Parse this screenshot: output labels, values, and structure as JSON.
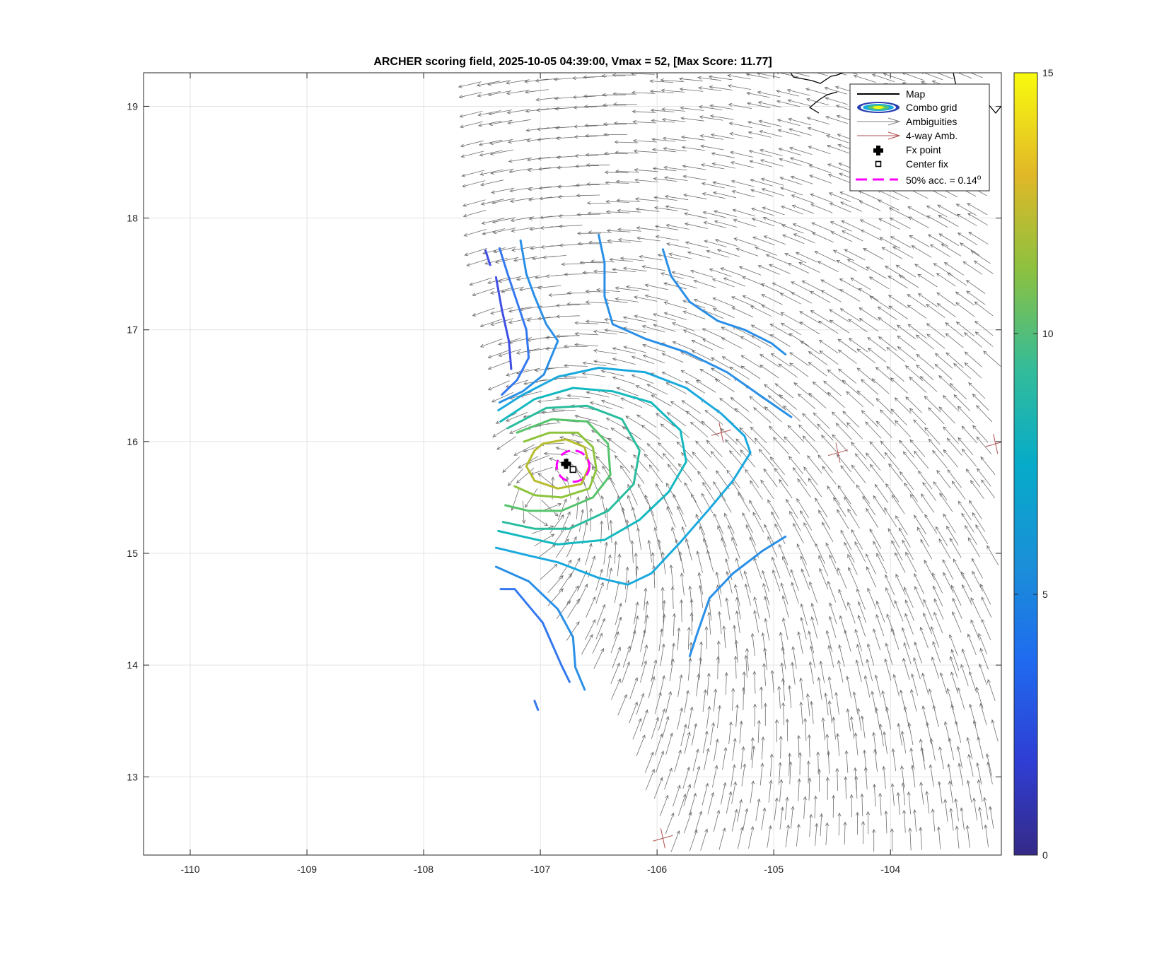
{
  "chart_data": {
    "type": "contour",
    "title": "ARCHER scoring field, 2025-10-05 04:39:00, Vmax = 52, [Max Score: 11.77]",
    "xlabel": "",
    "ylabel": "",
    "xlim": [
      -110.4,
      -103.05
    ],
    "ylim": [
      12.3,
      19.3
    ],
    "xticks": [
      -110,
      -109,
      -108,
      -107,
      -106,
      -105,
      -104
    ],
    "yticks": [
      13,
      14,
      15,
      16,
      17,
      18,
      19
    ],
    "xtick_labels": [
      "-110",
      "-109",
      "-108",
      "-107",
      "-106",
      "-105",
      "-104"
    ],
    "ytick_labels": [
      "13",
      "14",
      "15",
      "16",
      "17",
      "18",
      "19"
    ],
    "grid": true,
    "colormap": "parula",
    "colorbar": {
      "min": 0,
      "max": 15,
      "ticks": [
        0,
        5,
        10,
        15
      ],
      "tick_labels": [
        "0",
        "5",
        "10",
        "15"
      ]
    },
    "max_score": 11.77,
    "fx_point": {
      "lon": -106.78,
      "lat": 15.8
    },
    "center_fix": {
      "lon": -106.72,
      "lat": 15.75
    },
    "accuracy_circle": {
      "lon": -106.72,
      "lat": 15.78,
      "radius_deg": 0.14
    },
    "contour_levels": [
      {
        "level": 3.2,
        "color": "#3f4fe6",
        "segments": [
          [
            [
              -107.47,
              17.71
            ],
            [
              -107.43,
              17.58
            ]
          ],
          [
            [
              -107.38,
              17.47
            ],
            [
              -107.33,
              17.18
            ],
            [
              -107.27,
              16.9
            ],
            [
              -107.25,
              16.65
            ]
          ]
        ]
      },
      {
        "level": 4.0,
        "color": "#3478f0",
        "segments": [
          [
            [
              -107.35,
              17.73
            ],
            [
              -107.28,
              17.5
            ],
            [
              -107.2,
              17.25
            ],
            [
              -107.12,
              17.0
            ],
            [
              -107.1,
              16.75
            ],
            [
              -107.2,
              16.55
            ],
            [
              -107.33,
              16.42
            ]
          ],
          [
            [
              -107.34,
              14.68
            ],
            [
              -107.22,
              14.68
            ],
            [
              -106.98,
              14.38
            ],
            [
              -106.82,
              14.0
            ],
            [
              -106.75,
              13.85
            ]
          ],
          [
            [
              -107.05,
              13.68
            ],
            [
              -107.02,
              13.6
            ]
          ]
        ]
      },
      {
        "level": 4.8,
        "color": "#2a8fe6",
        "segments": [
          [
            [
              -107.17,
              17.8
            ],
            [
              -107.12,
              17.5
            ],
            [
              -107.05,
              17.3
            ],
            [
              -106.95,
              17.05
            ],
            [
              -106.85,
              16.9
            ],
            [
              -106.97,
              16.6
            ],
            [
              -107.15,
              16.45
            ],
            [
              -107.35,
              16.35
            ]
          ],
          [
            [
              -106.5,
              17.85
            ],
            [
              -106.45,
              17.6
            ],
            [
              -106.45,
              17.3
            ],
            [
              -106.38,
              17.05
            ],
            [
              -106.1,
              16.92
            ],
            [
              -105.75,
              16.8
            ],
            [
              -105.4,
              16.62
            ],
            [
              -105.1,
              16.4
            ],
            [
              -104.85,
              16.22
            ]
          ],
          [
            [
              -105.95,
              17.72
            ],
            [
              -105.88,
              17.48
            ],
            [
              -105.72,
              17.25
            ],
            [
              -105.48,
              17.08
            ],
            [
              -105.25,
              17.0
            ],
            [
              -105.02,
              16.88
            ],
            [
              -104.9,
              16.78
            ]
          ],
          [
            [
              -107.38,
              14.88
            ],
            [
              -107.1,
              14.75
            ],
            [
              -106.85,
              14.5
            ],
            [
              -106.72,
              14.25
            ],
            [
              -106.7,
              13.98
            ],
            [
              -106.62,
              13.78
            ]
          ],
          [
            [
              -105.72,
              14.08
            ],
            [
              -105.65,
              14.3
            ],
            [
              -105.55,
              14.6
            ],
            [
              -105.35,
              14.82
            ],
            [
              -105.1,
              15.02
            ],
            [
              -104.9,
              15.15
            ]
          ]
        ]
      },
      {
        "level": 5.8,
        "color": "#1aa9de",
        "segments": [
          [
            [
              -107.36,
              16.28
            ],
            [
              -107.15,
              16.42
            ],
            [
              -106.85,
              16.58
            ],
            [
              -106.5,
              16.66
            ],
            [
              -106.1,
              16.62
            ],
            [
              -105.75,
              16.48
            ],
            [
              -105.45,
              16.25
            ],
            [
              -105.25,
              16.05
            ],
            [
              -105.2,
              15.9
            ],
            [
              -105.35,
              15.65
            ],
            [
              -105.55,
              15.4
            ],
            [
              -105.8,
              15.1
            ],
            [
              -106.05,
              14.82
            ],
            [
              -106.25,
              14.72
            ],
            [
              -106.5,
              14.78
            ],
            [
              -106.85,
              14.92
            ],
            [
              -107.1,
              14.98
            ],
            [
              -107.38,
              15.05
            ]
          ]
        ]
      },
      {
        "level": 6.8,
        "color": "#14b9c0",
        "segments": [
          [
            [
              -107.34,
              16.18
            ],
            [
              -107.05,
              16.38
            ],
            [
              -106.72,
              16.48
            ],
            [
              -106.38,
              16.45
            ],
            [
              -106.05,
              16.35
            ],
            [
              -105.8,
              16.1
            ],
            [
              -105.75,
              15.82
            ],
            [
              -105.9,
              15.55
            ],
            [
              -106.15,
              15.3
            ],
            [
              -106.45,
              15.12
            ],
            [
              -106.85,
              15.08
            ],
            [
              -107.15,
              15.15
            ],
            [
              -107.36,
              15.2
            ]
          ]
        ]
      },
      {
        "level": 7.8,
        "color": "#29bd9e",
        "segments": [
          [
            [
              -107.28,
              16.12
            ],
            [
              -106.95,
              16.3
            ],
            [
              -106.6,
              16.32
            ],
            [
              -106.3,
              16.2
            ],
            [
              -106.15,
              15.92
            ],
            [
              -106.2,
              15.62
            ],
            [
              -106.42,
              15.38
            ],
            [
              -106.75,
              15.22
            ],
            [
              -107.05,
              15.22
            ],
            [
              -107.32,
              15.28
            ]
          ]
        ]
      },
      {
        "level": 8.8,
        "color": "#56c46c",
        "segments": [
          [
            [
              -107.2,
              16.08
            ],
            [
              -106.9,
              16.2
            ],
            [
              -106.6,
              16.18
            ],
            [
              -106.42,
              15.98
            ],
            [
              -106.4,
              15.7
            ],
            [
              -106.55,
              15.5
            ],
            [
              -106.82,
              15.38
            ],
            [
              -107.1,
              15.38
            ],
            [
              -107.3,
              15.43
            ]
          ]
        ]
      },
      {
        "level": 9.8,
        "color": "#8dc43c",
        "segments": [
          [
            [
              -107.14,
              16.0
            ],
            [
              -106.92,
              16.08
            ],
            [
              -106.68,
              16.08
            ],
            [
              -106.55,
              15.95
            ],
            [
              -106.52,
              15.75
            ],
            [
              -106.58,
              15.58
            ],
            [
              -106.82,
              15.5
            ],
            [
              -107.05,
              15.52
            ],
            [
              -107.22,
              15.6
            ]
          ]
        ]
      },
      {
        "level": 10.6,
        "color": "#b7bd2e",
        "segments": [
          [
            [
              -106.98,
              15.98
            ],
            [
              -106.78,
              16.02
            ],
            [
              -106.62,
              15.95
            ],
            [
              -106.58,
              15.78
            ],
            [
              -106.65,
              15.62
            ],
            [
              -106.85,
              15.58
            ],
            [
              -107.05,
              15.65
            ],
            [
              -107.12,
              15.78
            ],
            [
              -107.05,
              15.92
            ],
            [
              -106.98,
              15.98
            ]
          ]
        ]
      }
    ],
    "ambiguous_4way_points": [
      {
        "lon": -105.45,
        "lat": 16.08
      },
      {
        "lon": -104.45,
        "lat": 15.9
      },
      {
        "lon": -105.95,
        "lat": 12.45
      },
      {
        "lon": -103.1,
        "lat": 15.98
      }
    ],
    "wind_field": {
      "center": {
        "lon": -106.75,
        "lat": 15.78
      },
      "grid_step_deg": 0.135,
      "arrow_length_deg": 0.2,
      "swath_left_boundary": [
        {
          "lat": 19.28,
          "lon": -107.55
        },
        {
          "lat": 17.72,
          "lon": -107.5
        },
        {
          "lat": 16.6,
          "lon": -107.3
        },
        {
          "lat": 15.5,
          "lon": -107.2
        },
        {
          "lat": 14.4,
          "lon": -106.95
        },
        {
          "lat": 13.82,
          "lon": -106.45
        },
        {
          "lat": 13.0,
          "lon": -106.15
        },
        {
          "lat": 12.3,
          "lon": -105.9
        }
      ]
    },
    "legend": {
      "position": "top-right",
      "entries": [
        {
          "label": "Map",
          "kind": "line",
          "color": "#000000"
        },
        {
          "label": "Combo grid",
          "kind": "contour-ellipse",
          "color": "#2a3fb0"
        },
        {
          "label": "Ambiguities",
          "kind": "arrow",
          "color": "#808080"
        },
        {
          "label": "4-way Amb.",
          "kind": "arrow",
          "color": "#b05050"
        },
        {
          "label": "Fx point",
          "kind": "filled-marker",
          "color": "#000000"
        },
        {
          "label": "Center fix",
          "kind": "square-marker",
          "color": "#000000"
        },
        {
          "label": "50% acc. = 0.14",
          "superscript": "o",
          "kind": "dashed-line",
          "color": "#ff00ff"
        }
      ]
    }
  }
}
